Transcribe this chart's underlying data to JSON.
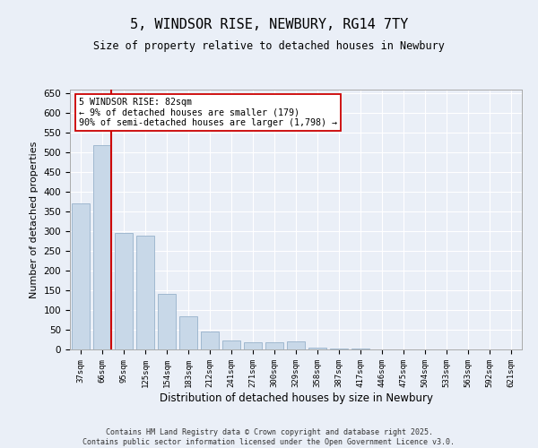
{
  "title": "5, WINDSOR RISE, NEWBURY, RG14 7TY",
  "subtitle": "Size of property relative to detached houses in Newbury",
  "xlabel": "Distribution of detached houses by size in Newbury",
  "ylabel": "Number of detached properties",
  "categories": [
    "37sqm",
    "66sqm",
    "95sqm",
    "125sqm",
    "154sqm",
    "183sqm",
    "212sqm",
    "241sqm",
    "271sqm",
    "300sqm",
    "329sqm",
    "358sqm",
    "387sqm",
    "417sqm",
    "446sqm",
    "475sqm",
    "504sqm",
    "533sqm",
    "563sqm",
    "592sqm",
    "621sqm"
  ],
  "values": [
    370,
    520,
    295,
    290,
    140,
    85,
    45,
    22,
    18,
    18,
    20,
    5,
    3,
    2,
    1,
    1,
    1,
    0,
    1,
    0,
    1
  ],
  "bar_color": "#c8d8e8",
  "bar_edge_color": "#a0b8d0",
  "vline_color": "#cc0000",
  "vline_pos": 1.42,
  "annotation_text": "5 WINDSOR RISE: 82sqm\n← 9% of detached houses are smaller (179)\n90% of semi-detached houses are larger (1,798) →",
  "annotation_box_color": "#ffffff",
  "annotation_box_edge_color": "#cc0000",
  "ylim": [
    0,
    660
  ],
  "yticks": [
    0,
    50,
    100,
    150,
    200,
    250,
    300,
    350,
    400,
    450,
    500,
    550,
    600,
    650
  ],
  "background_color": "#eaeff7",
  "grid_color": "#ffffff",
  "footer_line1": "Contains HM Land Registry data © Crown copyright and database right 2025.",
  "footer_line2": "Contains public sector information licensed under the Open Government Licence v3.0."
}
